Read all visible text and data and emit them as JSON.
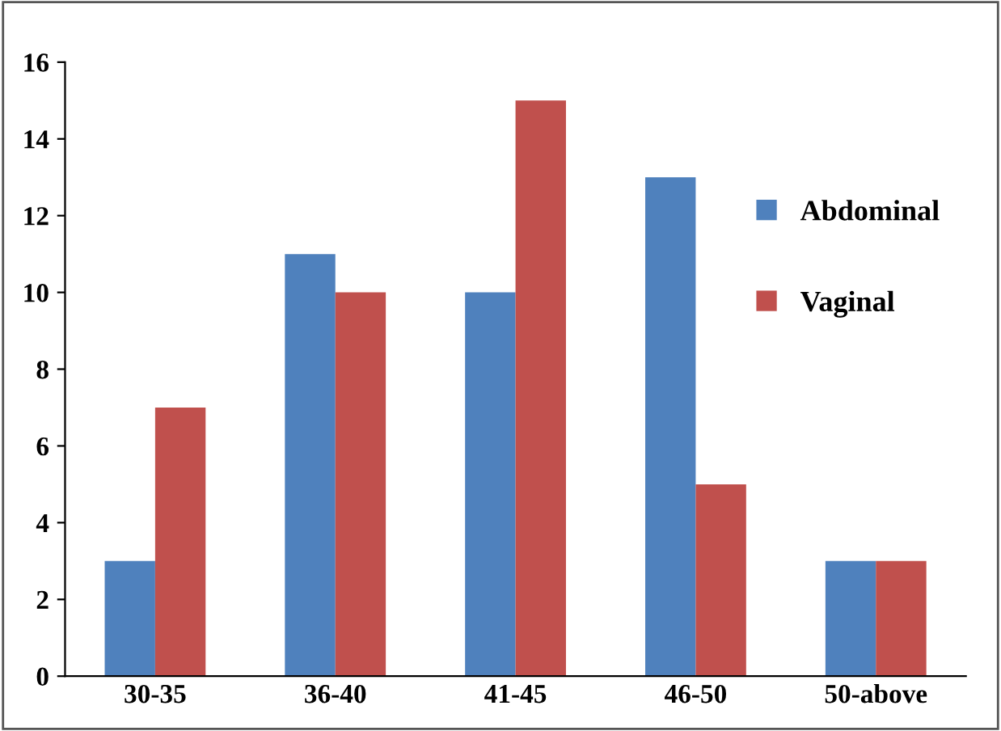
{
  "chart_data": {
    "type": "bar",
    "categories": [
      "30-35",
      "36-40",
      "41-45",
      "46-50",
      "50-above"
    ],
    "series": [
      {
        "name": "Abdominal",
        "color": "#4f81bd",
        "values": [
          3,
          11,
          10,
          13,
          3
        ]
      },
      {
        "name": "Vaginal",
        "color": "#c0504d",
        "values": [
          7,
          10,
          15,
          5,
          3
        ]
      }
    ],
    "ylim": [
      0,
      16
    ],
    "yticks": [
      0,
      2,
      4,
      6,
      8,
      10,
      12,
      14,
      16
    ],
    "grid": false,
    "legend": "right"
  }
}
